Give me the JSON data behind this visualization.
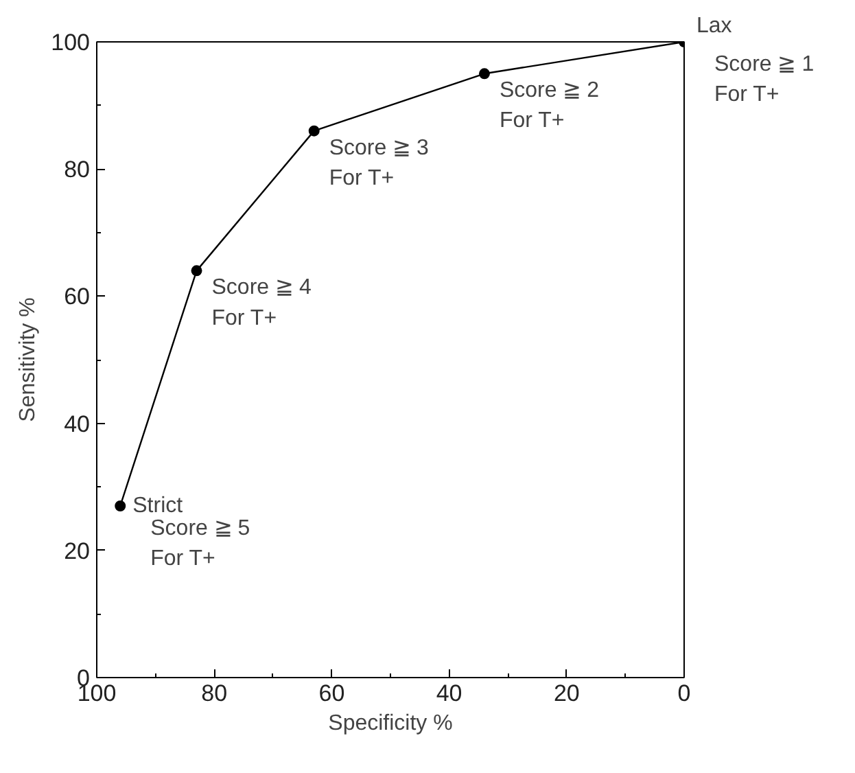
{
  "chart_data": {
    "type": "line",
    "xlabel": "Specificity %",
    "ylabel": "Sensitivity %",
    "x": [
      96,
      83,
      63,
      34,
      0
    ],
    "series": [
      {
        "color": "#000000",
        "values": [
          27,
          64,
          86,
          95,
          100
        ]
      }
    ],
    "marker": "circle",
    "line_style": "solid",
    "grid": false,
    "xlim": [
      100,
      0
    ],
    "xticks": [
      100,
      80,
      60,
      40,
      20,
      0
    ],
    "ylim": [
      0,
      100
    ],
    "yticks": [
      0,
      20,
      40,
      60,
      80,
      100
    ],
    "annotations": [
      {
        "text": "Strict",
        "x": 96,
        "y": 27
      },
      {
        "text": "Score ≧ 5\nFor T+",
        "x": 96,
        "y": 27
      },
      {
        "text": "Score ≧ 4\nFor T+",
        "x": 83,
        "y": 64
      },
      {
        "text": "Score ≧ 3\nFor T+",
        "x": 63,
        "y": 86
      },
      {
        "text": "Score ≧ 2\nFor T+",
        "x": 34,
        "y": 95
      },
      {
        "text": "Lax",
        "x": 0,
        "y": 100
      },
      {
        "text": "Score ≧ 1\nFor T+",
        "x": 0,
        "y": 100
      }
    ]
  }
}
